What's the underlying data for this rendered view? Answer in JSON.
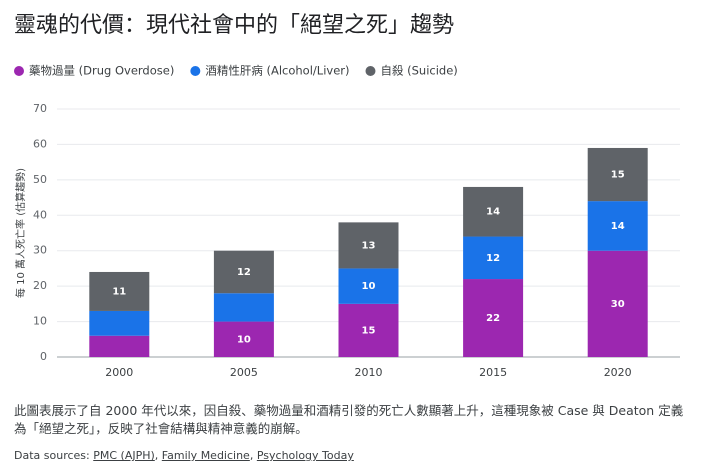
{
  "chart_data": {
    "type": "stacked-bar",
    "title": "靈魂的代價：現代社會中的「絕望之死」趨勢",
    "y_label": "每 10 萬人死亡率 (估算趨勢)",
    "categories": [
      "2000",
      "2005",
      "2010",
      "2015",
      "2020"
    ],
    "series": [
      {
        "name": "藥物過量 (Drug Overdose)",
        "color": "#9c27b0",
        "values": [
          6,
          10,
          15,
          22,
          30
        ]
      },
      {
        "name": "酒精性肝病 (Alcohol/Liver)",
        "color": "#1a73e8",
        "values": [
          7,
          8,
          10,
          12,
          14
        ]
      },
      {
        "name": "自殺 (Suicide)",
        "color": "#5f6368",
        "values": [
          11,
          12,
          13,
          14,
          15
        ]
      }
    ],
    "ylim": [
      0,
      70
    ],
    "yticks": [
      0,
      10,
      20,
      30,
      40,
      50,
      60,
      70
    ],
    "grid": true,
    "legend": "top"
  },
  "caption": "此圖表展示了自 2000 年代以來，因自殺、藥物過量和酒精引發的死亡人數顯著上升，這種現象被 Case 與 Deaton 定義為「絕望之死」，反映了社會結構與精神意義的崩解。",
  "sources": {
    "label": "Data sources:",
    "separator": ",",
    "links": [
      "PMC (AJPH)",
      "Family Medicine",
      "Psychology Today"
    ]
  }
}
